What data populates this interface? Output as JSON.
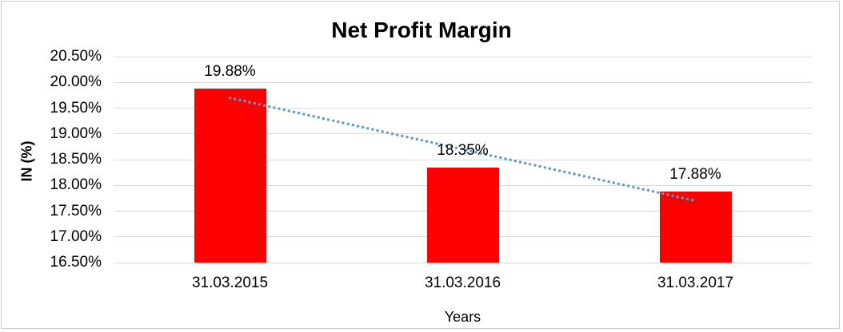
{
  "chart_data": {
    "type": "bar",
    "title": "Net Profit Margin",
    "xlabel": "Years",
    "ylabel": "IN (%)",
    "categories": [
      "31.03.2015",
      "31.03.2016",
      "31.03.2017"
    ],
    "values": [
      19.88,
      18.35,
      17.88
    ],
    "data_labels": [
      "19.88%",
      "18.35%",
      "17.88%"
    ],
    "ylim": [
      16.5,
      20.5
    ],
    "ytick_step": 0.5,
    "ytick_labels": [
      "20.50%",
      "20.00%",
      "19.50%",
      "19.00%",
      "18.50%",
      "18.00%",
      "17.50%",
      "17.00%",
      "16.50%"
    ],
    "grid": true,
    "legend": "none",
    "bar_color": "#ff0000",
    "gridline_color": "#d9d9d9",
    "chart_border_color": "#c9c9c9",
    "trendline": {
      "type": "linear",
      "style": "dotted",
      "color": "#5b9bd5",
      "start_value": 19.7,
      "end_value": 17.7
    }
  }
}
